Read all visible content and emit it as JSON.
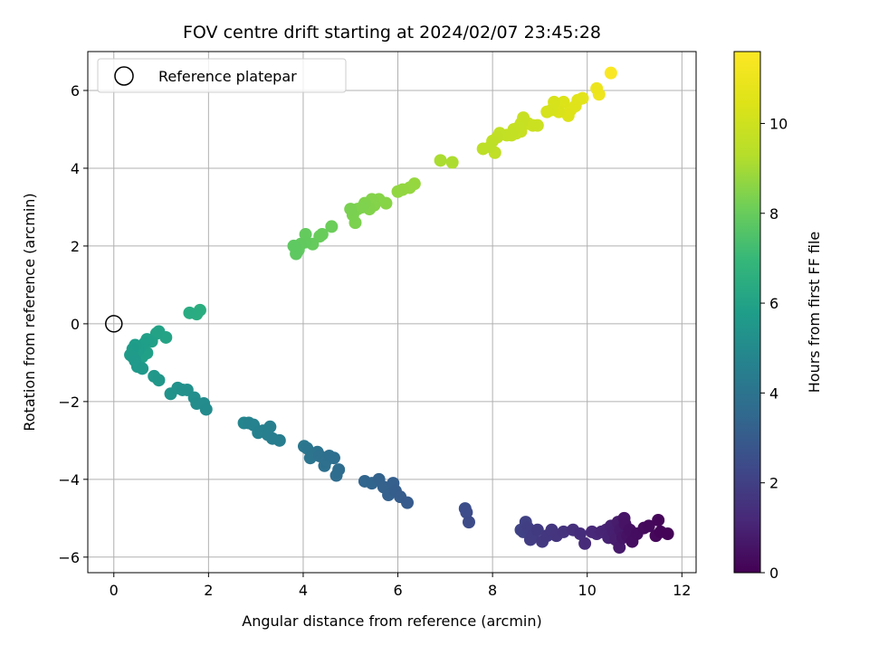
{
  "chart_data": {
    "type": "scatter",
    "title": "FOV centre drift starting at 2024/02/07 23:45:28",
    "xlabel": "Angular distance from reference (arcmin)",
    "ylabel": "Rotation from reference (arcmin)",
    "xlim": [
      -0.55,
      12.3
    ],
    "ylim": [
      -6.4,
      7.0
    ],
    "xticks": [
      0,
      2,
      4,
      6,
      8,
      10,
      12
    ],
    "yticks": [
      -6,
      -4,
      -2,
      0,
      2,
      4,
      6
    ],
    "grid": true,
    "legend": {
      "position": "top-left",
      "entries": [
        "Reference platepar"
      ]
    },
    "reference_point": {
      "x": 0,
      "y": 0
    },
    "colorbar": {
      "label": "Hours from first FF file",
      "colormap": "viridis",
      "range": [
        0,
        11.6
      ],
      "ticks": [
        0,
        2,
        4,
        6,
        8,
        10
      ]
    },
    "points": [
      {
        "x": 11.7,
        "y": -5.4,
        "c": 0.05
      },
      {
        "x": 11.55,
        "y": -5.35,
        "c": 0.1
      },
      {
        "x": 11.5,
        "y": -5.05,
        "c": 0.15
      },
      {
        "x": 11.45,
        "y": -5.45,
        "c": 0.2
      },
      {
        "x": 11.3,
        "y": -5.2,
        "c": 0.25
      },
      {
        "x": 11.2,
        "y": -5.25,
        "c": 0.3
      },
      {
        "x": 11.05,
        "y": -5.4,
        "c": 0.35
      },
      {
        "x": 10.95,
        "y": -5.6,
        "c": 0.4
      },
      {
        "x": 10.9,
        "y": -5.3,
        "c": 0.45
      },
      {
        "x": 10.85,
        "y": -5.45,
        "c": 0.5
      },
      {
        "x": 10.8,
        "y": -5.15,
        "c": 0.55
      },
      {
        "x": 10.78,
        "y": -5.0,
        "c": 0.6
      },
      {
        "x": 10.75,
        "y": -5.5,
        "c": 0.65
      },
      {
        "x": 10.7,
        "y": -5.3,
        "c": 0.7
      },
      {
        "x": 10.68,
        "y": -5.75,
        "c": 0.75
      },
      {
        "x": 10.65,
        "y": -5.1,
        "c": 0.8
      },
      {
        "x": 10.6,
        "y": -5.55,
        "c": 0.85
      },
      {
        "x": 10.55,
        "y": -5.35,
        "c": 0.9
      },
      {
        "x": 10.5,
        "y": -5.2,
        "c": 0.95
      },
      {
        "x": 10.45,
        "y": -5.5,
        "c": 1.0
      },
      {
        "x": 10.4,
        "y": -5.3,
        "c": 1.05
      },
      {
        "x": 10.3,
        "y": -5.35,
        "c": 1.1
      },
      {
        "x": 10.2,
        "y": -5.4,
        "c": 1.15
      },
      {
        "x": 10.1,
        "y": -5.35,
        "c": 1.2
      },
      {
        "x": 9.95,
        "y": -5.65,
        "c": 1.3
      },
      {
        "x": 9.85,
        "y": -5.4,
        "c": 1.35
      },
      {
        "x": 9.7,
        "y": -5.3,
        "c": 1.45
      },
      {
        "x": 9.5,
        "y": -5.35,
        "c": 1.55
      },
      {
        "x": 9.35,
        "y": -5.45,
        "c": 1.6
      },
      {
        "x": 9.25,
        "y": -5.3,
        "c": 1.65
      },
      {
        "x": 9.15,
        "y": -5.45,
        "c": 1.7
      },
      {
        "x": 9.05,
        "y": -5.6,
        "c": 1.75
      },
      {
        "x": 8.95,
        "y": -5.3,
        "c": 1.8
      },
      {
        "x": 8.85,
        "y": -5.45,
        "c": 1.85
      },
      {
        "x": 8.8,
        "y": -5.55,
        "c": 1.9
      },
      {
        "x": 8.75,
        "y": -5.25,
        "c": 1.95
      },
      {
        "x": 8.7,
        "y": -5.1,
        "c": 2.0
      },
      {
        "x": 8.65,
        "y": -5.35,
        "c": 2.05
      },
      {
        "x": 8.6,
        "y": -5.3,
        "c": 2.1
      },
      {
        "x": 7.5,
        "y": -5.1,
        "c": 2.4
      },
      {
        "x": 7.45,
        "y": -4.85,
        "c": 2.45
      },
      {
        "x": 7.42,
        "y": -4.75,
        "c": 2.5
      },
      {
        "x": 6.2,
        "y": -4.6,
        "c": 3.0
      },
      {
        "x": 6.05,
        "y": -4.45,
        "c": 3.05
      },
      {
        "x": 5.95,
        "y": -4.3,
        "c": 3.1
      },
      {
        "x": 5.9,
        "y": -4.1,
        "c": 3.15
      },
      {
        "x": 5.8,
        "y": -4.4,
        "c": 3.2
      },
      {
        "x": 5.7,
        "y": -4.2,
        "c": 3.25
      },
      {
        "x": 5.6,
        "y": -4.0,
        "c": 3.3
      },
      {
        "x": 5.45,
        "y": -4.1,
        "c": 3.35
      },
      {
        "x": 5.3,
        "y": -4.05,
        "c": 3.4
      },
      {
        "x": 4.75,
        "y": -3.75,
        "c": 3.7
      },
      {
        "x": 4.7,
        "y": -3.9,
        "c": 3.72
      },
      {
        "x": 4.65,
        "y": -3.45,
        "c": 3.75
      },
      {
        "x": 4.55,
        "y": -3.4,
        "c": 3.8
      },
      {
        "x": 4.5,
        "y": -3.5,
        "c": 3.82
      },
      {
        "x": 4.45,
        "y": -3.65,
        "c": 3.85
      },
      {
        "x": 4.35,
        "y": -3.4,
        "c": 3.9
      },
      {
        "x": 4.3,
        "y": -3.3,
        "c": 3.95
      },
      {
        "x": 4.2,
        "y": -3.35,
        "c": 4.0
      },
      {
        "x": 4.15,
        "y": -3.45,
        "c": 4.05
      },
      {
        "x": 4.08,
        "y": -3.2,
        "c": 4.1
      },
      {
        "x": 4.02,
        "y": -3.15,
        "c": 4.15
      },
      {
        "x": 3.5,
        "y": -3.0,
        "c": 4.4
      },
      {
        "x": 3.35,
        "y": -2.95,
        "c": 4.45
      },
      {
        "x": 3.25,
        "y": -2.85,
        "c": 4.5
      },
      {
        "x": 3.15,
        "y": -2.75,
        "c": 4.55
      },
      {
        "x": 3.05,
        "y": -2.8,
        "c": 4.6
      },
      {
        "x": 2.95,
        "y": -2.6,
        "c": 4.65
      },
      {
        "x": 2.85,
        "y": -2.55,
        "c": 4.7
      },
      {
        "x": 2.75,
        "y": -2.55,
        "c": 4.75
      },
      {
        "x": 3.3,
        "y": -2.65,
        "c": 4.5
      },
      {
        "x": 1.95,
        "y": -2.2,
        "c": 5.0
      },
      {
        "x": 1.9,
        "y": -2.05,
        "c": 5.05
      },
      {
        "x": 1.75,
        "y": -2.05,
        "c": 5.1
      },
      {
        "x": 1.7,
        "y": -1.9,
        "c": 5.15
      },
      {
        "x": 1.55,
        "y": -1.7,
        "c": 5.2
      },
      {
        "x": 1.45,
        "y": -1.7,
        "c": 5.25
      },
      {
        "x": 1.35,
        "y": -1.65,
        "c": 5.3
      },
      {
        "x": 1.2,
        "y": -1.8,
        "c": 5.35
      },
      {
        "x": 0.95,
        "y": -1.45,
        "c": 5.5
      },
      {
        "x": 0.85,
        "y": -1.35,
        "c": 5.55
      },
      {
        "x": 0.6,
        "y": -1.15,
        "c": 5.6
      },
      {
        "x": 0.5,
        "y": -1.1,
        "c": 5.62
      },
      {
        "x": 0.45,
        "y": -0.95,
        "c": 5.65
      },
      {
        "x": 0.4,
        "y": -0.85,
        "c": 5.68
      },
      {
        "x": 0.35,
        "y": -0.8,
        "c": 5.7
      },
      {
        "x": 0.4,
        "y": -0.65,
        "c": 5.72
      },
      {
        "x": 0.45,
        "y": -0.55,
        "c": 5.75
      },
      {
        "x": 0.5,
        "y": -0.7,
        "c": 5.78
      },
      {
        "x": 0.55,
        "y": -0.6,
        "c": 5.8
      },
      {
        "x": 0.65,
        "y": -0.5,
        "c": 5.85
      },
      {
        "x": 0.7,
        "y": -0.75,
        "c": 5.88
      },
      {
        "x": 0.7,
        "y": -0.4,
        "c": 5.9
      },
      {
        "x": 0.6,
        "y": -0.85,
        "c": 5.92
      },
      {
        "x": 0.9,
        "y": -0.25,
        "c": 6.0
      },
      {
        "x": 0.95,
        "y": -0.2,
        "c": 6.05
      },
      {
        "x": 1.1,
        "y": -0.35,
        "c": 6.1
      },
      {
        "x": 0.8,
        "y": -0.45,
        "c": 5.95
      },
      {
        "x": 1.6,
        "y": 0.28,
        "c": 6.4
      },
      {
        "x": 1.75,
        "y": 0.25,
        "c": 6.45
      },
      {
        "x": 1.82,
        "y": 0.35,
        "c": 6.5
      },
      {
        "x": 3.8,
        "y": 2.0,
        "c": 7.8
      },
      {
        "x": 3.85,
        "y": 1.8,
        "c": 7.82
      },
      {
        "x": 3.9,
        "y": 1.9,
        "c": 7.85
      },
      {
        "x": 3.95,
        "y": 2.05,
        "c": 7.88
      },
      {
        "x": 4.05,
        "y": 2.1,
        "c": 7.9
      },
      {
        "x": 4.05,
        "y": 2.3,
        "c": 7.92
      },
      {
        "x": 4.2,
        "y": 2.05,
        "c": 7.95
      },
      {
        "x": 4.35,
        "y": 2.25,
        "c": 8.0
      },
      {
        "x": 4.4,
        "y": 2.3,
        "c": 8.02
      },
      {
        "x": 4.6,
        "y": 2.5,
        "c": 8.05
      },
      {
        "x": 5.0,
        "y": 2.95,
        "c": 8.3
      },
      {
        "x": 5.05,
        "y": 2.8,
        "c": 8.32
      },
      {
        "x": 5.1,
        "y": 2.6,
        "c": 8.35
      },
      {
        "x": 5.15,
        "y": 2.95,
        "c": 8.38
      },
      {
        "x": 5.25,
        "y": 3.0,
        "c": 8.4
      },
      {
        "x": 5.3,
        "y": 3.1,
        "c": 8.42
      },
      {
        "x": 5.4,
        "y": 2.95,
        "c": 8.45
      },
      {
        "x": 5.45,
        "y": 3.2,
        "c": 8.48
      },
      {
        "x": 5.5,
        "y": 3.05,
        "c": 8.5
      },
      {
        "x": 5.6,
        "y": 3.2,
        "c": 8.52
      },
      {
        "x": 5.75,
        "y": 3.1,
        "c": 8.55
      },
      {
        "x": 6.0,
        "y": 3.4,
        "c": 8.7
      },
      {
        "x": 6.1,
        "y": 3.45,
        "c": 8.72
      },
      {
        "x": 6.25,
        "y": 3.5,
        "c": 8.75
      },
      {
        "x": 6.35,
        "y": 3.6,
        "c": 8.78
      },
      {
        "x": 6.9,
        "y": 4.2,
        "c": 9.1
      },
      {
        "x": 7.15,
        "y": 4.15,
        "c": 9.15
      },
      {
        "x": 7.8,
        "y": 4.5,
        "c": 9.5
      },
      {
        "x": 7.95,
        "y": 4.55,
        "c": 9.55
      },
      {
        "x": 8.0,
        "y": 4.7,
        "c": 9.58
      },
      {
        "x": 8.05,
        "y": 4.4,
        "c": 9.6
      },
      {
        "x": 8.1,
        "y": 4.8,
        "c": 9.62
      },
      {
        "x": 8.15,
        "y": 4.9,
        "c": 9.65
      },
      {
        "x": 8.3,
        "y": 4.85,
        "c": 9.7
      },
      {
        "x": 8.4,
        "y": 4.85,
        "c": 9.72
      },
      {
        "x": 8.45,
        "y": 5.0,
        "c": 9.75
      },
      {
        "x": 8.55,
        "y": 5.05,
        "c": 9.78
      },
      {
        "x": 8.6,
        "y": 5.15,
        "c": 9.8
      },
      {
        "x": 8.65,
        "y": 5.3,
        "c": 9.82
      },
      {
        "x": 8.6,
        "y": 4.95,
        "c": 9.85
      },
      {
        "x": 8.75,
        "y": 5.15,
        "c": 9.88
      },
      {
        "x": 8.85,
        "y": 5.1,
        "c": 9.9
      },
      {
        "x": 8.95,
        "y": 5.1,
        "c": 9.92
      },
      {
        "x": 8.5,
        "y": 4.9,
        "c": 9.76
      },
      {
        "x": 9.15,
        "y": 5.45,
        "c": 10.2
      },
      {
        "x": 9.25,
        "y": 5.5,
        "c": 10.25
      },
      {
        "x": 9.3,
        "y": 5.7,
        "c": 10.3
      },
      {
        "x": 9.4,
        "y": 5.45,
        "c": 10.35
      },
      {
        "x": 9.5,
        "y": 5.7,
        "c": 10.4
      },
      {
        "x": 9.6,
        "y": 5.35,
        "c": 10.45
      },
      {
        "x": 9.65,
        "y": 5.5,
        "c": 10.5
      },
      {
        "x": 9.75,
        "y": 5.6,
        "c": 10.55
      },
      {
        "x": 9.8,
        "y": 5.75,
        "c": 10.6
      },
      {
        "x": 9.9,
        "y": 5.8,
        "c": 10.65
      },
      {
        "x": 10.2,
        "y": 6.05,
        "c": 11.0
      },
      {
        "x": 10.25,
        "y": 5.9,
        "c": 11.05
      },
      {
        "x": 10.5,
        "y": 6.45,
        "c": 11.5
      }
    ]
  }
}
